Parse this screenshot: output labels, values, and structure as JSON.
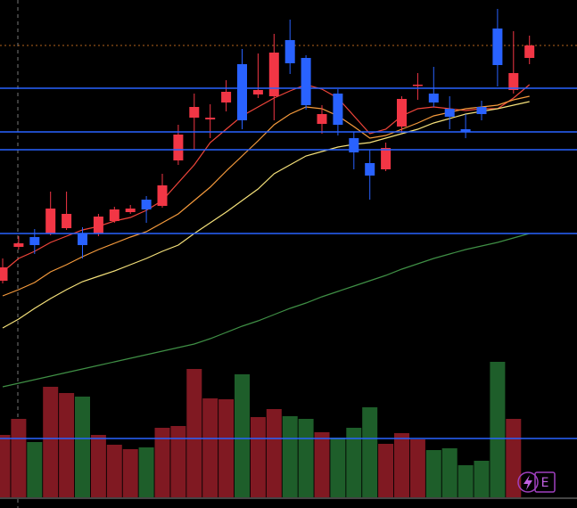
{
  "chart_data": {
    "type": "candlestick",
    "ylim": [
      0,
      558
    ],
    "open": [
      243,
      281,
      292,
      296,
      302,
      296,
      296,
      310,
      320,
      334,
      327,
      378,
      426,
      424,
      443,
      486,
      452,
      450,
      513,
      493,
      419,
      453,
      403,
      375,
      368,
      416,
      462,
      453,
      436,
      413,
      438,
      526,
      457,
      493
    ],
    "high": [
      268,
      293,
      301,
      343,
      343,
      303,
      318,
      326,
      328,
      338,
      363,
      418,
      453,
      441,
      468,
      503,
      498,
      520,
      536,
      496,
      440,
      458,
      410,
      390,
      398,
      450,
      476,
      483,
      450,
      430,
      445,
      548,
      523,
      518
    ],
    "low": [
      240,
      278,
      273,
      294,
      300,
      268,
      293,
      308,
      318,
      308,
      325,
      373,
      390,
      403,
      433,
      413,
      448,
      423,
      475,
      435,
      408,
      406,
      368,
      334,
      366,
      409,
      446,
      438,
      413,
      403,
      423,
      461,
      453,
      486
    ],
    "close": [
      258,
      285,
      283,
      324,
      318,
      283,
      315,
      323,
      324,
      323,
      350,
      407,
      438,
      426,
      455,
      423,
      457,
      499,
      487,
      440,
      430,
      418,
      387,
      361,
      392,
      447,
      463,
      443,
      427,
      410,
      430,
      485,
      476,
      507
    ],
    "volume": [
      70,
      88,
      62,
      124,
      117,
      113,
      70,
      59,
      54,
      56,
      78,
      80,
      144,
      111,
      110,
      138,
      90,
      99,
      91,
      88,
      73,
      67,
      78,
      101,
      60,
      72,
      65,
      53,
      55,
      36,
      41,
      152,
      88,
      null
    ],
    "up_color": "#f23645",
    "down_color": "#2962ff",
    "volume_up_color": "#801922",
    "volume_down_color": "#1e5e2a",
    "ma": [
      {
        "color": "#f0453a",
        "values": [
          253,
          268,
          276,
          286,
          293,
          300,
          304,
          310,
          314,
          322,
          333,
          353,
          373,
          398,
          413,
          428,
          438,
          448,
          456,
          463,
          458,
          448,
          428,
          408,
          413,
          428,
          436,
          438,
          436,
          434,
          436,
          436,
          448,
          463
        ]
      },
      {
        "color": "#f59a3c",
        "values": [
          226,
          233,
          241,
          253,
          261,
          270,
          278,
          285,
          292,
          298,
          308,
          318,
          333,
          348,
          366,
          383,
          400,
          418,
          430,
          438,
          436,
          428,
          416,
          403,
          406,
          413,
          420,
          428,
          432,
          436,
          438,
          440,
          446,
          450
        ]
      },
      {
        "color": "#f5e17a",
        "values": [
          190,
          200,
          212,
          223,
          233,
          242,
          248,
          254,
          261,
          268,
          276,
          283,
          296,
          308,
          320,
          333,
          346,
          363,
          373,
          383,
          388,
          393,
          396,
          398,
          403,
          408,
          413,
          420,
          425,
          430,
          433,
          436,
          440,
          444
        ]
      },
      {
        "color": "#3f8f45",
        "values": [
          124,
          128,
          132,
          136,
          140,
          144,
          148,
          152,
          156,
          160,
          164,
          168,
          172,
          178,
          185,
          192,
          198,
          205,
          212,
          218,
          225,
          231,
          237,
          243,
          249,
          256,
          262,
          268,
          273,
          278,
          282,
          286,
          291,
          296
        ]
      }
    ],
    "levels": {
      "color": "#2962ff",
      "values": [
        459,
        410,
        390,
        296,
        66
      ]
    },
    "reference_line": {
      "color": "#b5651d",
      "value": 507
    }
  },
  "badge": "E"
}
